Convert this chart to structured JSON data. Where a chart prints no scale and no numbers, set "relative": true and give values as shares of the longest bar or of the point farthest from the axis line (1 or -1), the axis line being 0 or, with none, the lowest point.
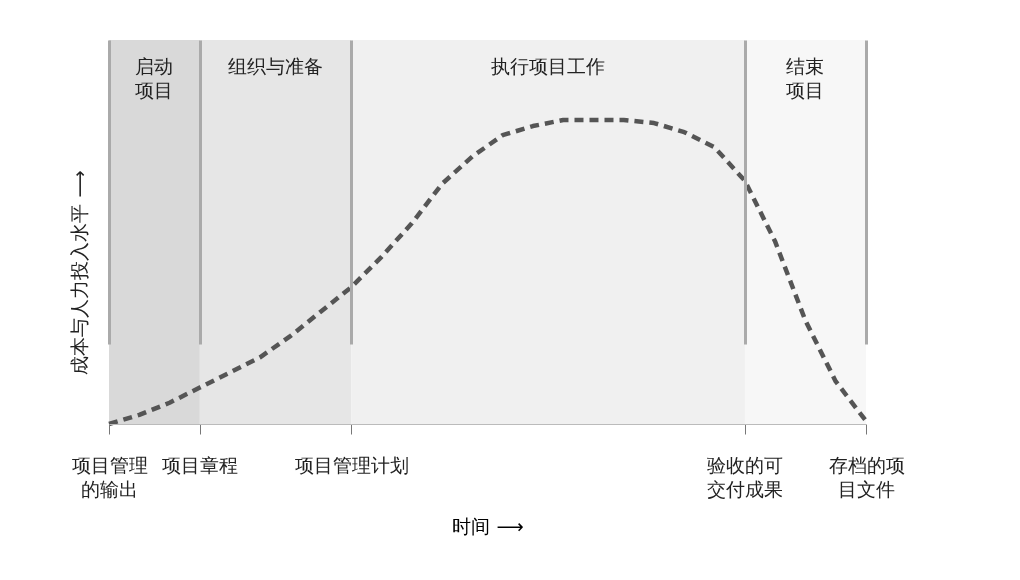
{
  "chart_data": {
    "type": "line",
    "relative": true,
    "xlabel": "时间 ⟶",
    "ylabel": "成本与人力投入水平 ⟶",
    "categories": [
      "项目管理的输出",
      null,
      null,
      "项目章程",
      null,
      null,
      null,
      null,
      "项目管理计划",
      null,
      null,
      null,
      null,
      null,
      null,
      null,
      null,
      null,
      null,
      null,
      null,
      "验收的可交付成果",
      null,
      null,
      null,
      "存档的项目文件"
    ],
    "bands": [
      {
        "axis": "x",
        "from": "项目管理的输出",
        "to": "项目章程",
        "label": "启动项目",
        "color": "#d9d9d9"
      },
      {
        "axis": "x",
        "from": "项目章程",
        "to": "项目管理计划",
        "label": "组织与准备",
        "color": "#e6e6e6"
      },
      {
        "axis": "x",
        "from": "项目管理计划",
        "to": "验收的可交付成果",
        "label": "执行项目工作",
        "color": "#f0f0f0"
      },
      {
        "axis": "x",
        "from": "验收的可交付成果",
        "to": "存档的项目文件",
        "label": "结束项目",
        "color": "#f7f7f7"
      }
    ],
    "grid": "x",
    "series": [
      {
        "color": "#555555",
        "line_style": "dashed",
        "values": [
          0,
          0.03,
          0.07,
          0.12,
          0.17,
          0.22,
          0.29,
          0.37,
          0.45,
          0.55,
          0.66,
          0.79,
          0.88,
          0.95,
          0.98,
          1,
          1,
          1,
          0.99,
          0.96,
          0.91,
          0.8,
          0.6,
          0.34,
          0.14,
          0.01
        ]
      }
    ]
  }
}
